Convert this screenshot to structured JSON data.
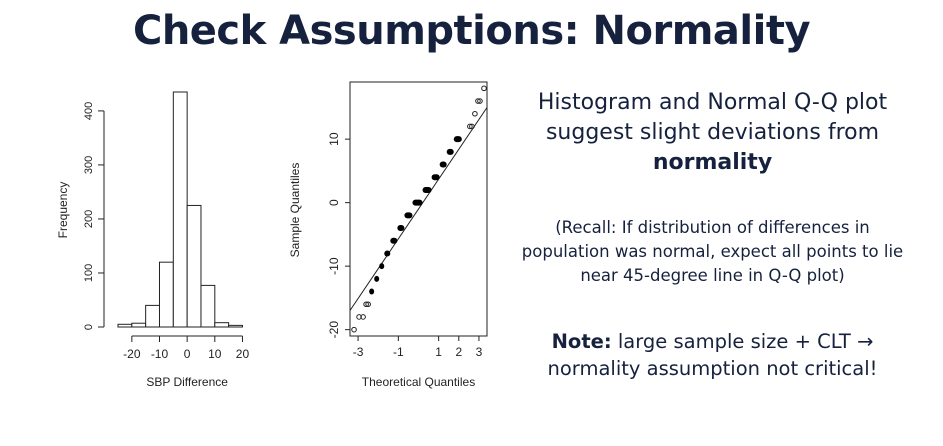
{
  "slide": {
    "title": "Check Assumptions: Normality",
    "main_point_prefix": "Histogram and Normal Q-Q plot suggest slight deviations from ",
    "main_point_bold": "normality",
    "recall": "(Recall: If distribution of differences in population was normal, expect all points to lie near 45-degree line in Q-Q plot)",
    "note_bold": "Note:",
    "note_text": " large sample size + CLT → normality assumption not critical!"
  },
  "colors": {
    "text": "#16213e",
    "plot": "#222222"
  },
  "chart_data": [
    {
      "type": "bar",
      "subtype": "histogram",
      "title": "",
      "xlabel": "SBP Difference",
      "ylabel": "Frequency",
      "bin_edges": [
        -25,
        -20,
        -15,
        -10,
        -5,
        0,
        5,
        10,
        15,
        20
      ],
      "values": [
        5,
        7,
        40,
        120,
        435,
        225,
        77,
        8,
        3
      ],
      "x_ticks": [
        "-20",
        "-10",
        "0",
        "10",
        "20"
      ],
      "x_tick_values": [
        -20,
        -10,
        0,
        10,
        20
      ],
      "y_ticks": [
        "0",
        "100",
        "200",
        "300",
        "400"
      ],
      "y_tick_values": [
        0,
        100,
        200,
        300,
        400
      ],
      "xlim": [
        -25,
        22
      ],
      "ylim": [
        0,
        435
      ]
    },
    {
      "type": "scatter",
      "subtype": "normal-qq",
      "title": "",
      "xlabel": "Theoretical Quantiles",
      "ylabel": "Sample Quantiles",
      "x_ticks": [
        "-3",
        "-1",
        "1",
        "2",
        "3"
      ],
      "x_tick_values": [
        -3,
        -1,
        1,
        2,
        3
      ],
      "y_ticks": [
        "-20",
        "-10",
        "0",
        "10"
      ],
      "y_tick_values": [
        -20,
        -10,
        0,
        10
      ],
      "xlim": [
        -3.4,
        3.4
      ],
      "ylim": [
        -21,
        19
      ],
      "reference_line": {
        "intercept": -1,
        "slope": 4.7
      },
      "outlier_points": [
        [
          -3.2,
          -20
        ],
        [
          -2.95,
          -18
        ],
        [
          -2.75,
          -18
        ],
        [
          -2.6,
          -16
        ],
        [
          -2.5,
          -16
        ],
        [
          2.55,
          12
        ],
        [
          2.65,
          12
        ],
        [
          2.8,
          14
        ],
        [
          2.95,
          16
        ],
        [
          3.05,
          16
        ],
        [
          3.25,
          18
        ]
      ],
      "steps": [
        {
          "y": -14,
          "x_from": -2.45,
          "x_to": -2.2
        },
        {
          "y": -12,
          "x_from": -2.2,
          "x_to": -1.95
        },
        {
          "y": -10,
          "x_from": -1.95,
          "x_to": -1.7
        },
        {
          "y": -8,
          "x_from": -1.7,
          "x_to": -1.4
        },
        {
          "y": -6,
          "x_from": -1.4,
          "x_to": -1.05
        },
        {
          "y": -4,
          "x_from": -1.05,
          "x_to": -0.7
        },
        {
          "y": -2,
          "x_from": -0.7,
          "x_to": -0.3
        },
        {
          "y": 0,
          "x_from": -0.3,
          "x_to": 0.2
        },
        {
          "y": 2,
          "x_from": 0.2,
          "x_to": 0.65
        },
        {
          "y": 4,
          "x_from": 0.65,
          "x_to": 1.05
        },
        {
          "y": 6,
          "x_from": 1.05,
          "x_to": 1.4
        },
        {
          "y": 8,
          "x_from": 1.4,
          "x_to": 1.75
        },
        {
          "y": 10,
          "x_from": 1.75,
          "x_to": 2.15
        }
      ]
    }
  ]
}
